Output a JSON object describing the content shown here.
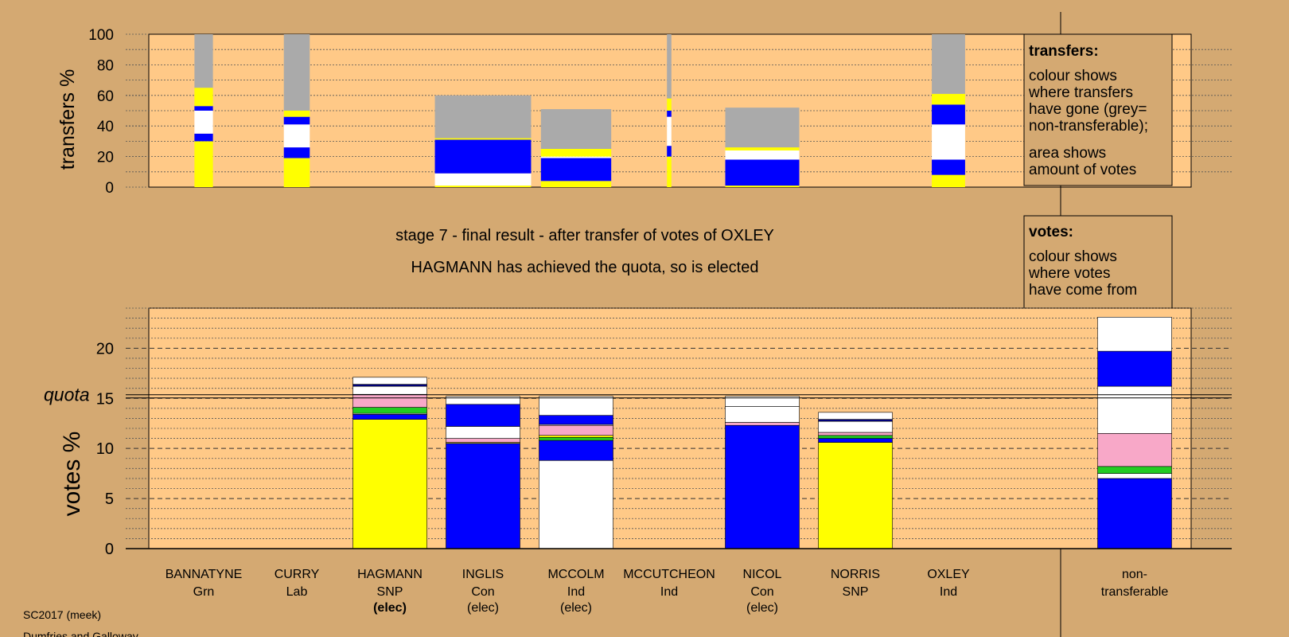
{
  "chart_data": [
    {
      "type": "bar",
      "panel": "transfers",
      "ylabel": "transfers %",
      "ylim": [
        0,
        100
      ],
      "yticks": [
        0,
        20,
        40,
        60,
        80,
        100
      ],
      "categories": [
        "BANNATYNE",
        "CURRY",
        "HAGMANN",
        "INGLIS",
        "MCCOLM",
        "MCCUTCHEON",
        "NICOL",
        "NORRIS",
        "OXLEY"
      ],
      "bars": [
        {
          "category": "BANNATYNE",
          "area_width": 0.25,
          "segments": [
            {
              "color": "#ffff00",
              "from": 0,
              "to": 30
            },
            {
              "color": "#0000ff",
              "from": 30,
              "to": 35
            },
            {
              "color": "#ffffff",
              "from": 35,
              "to": 50
            },
            {
              "color": "#0000ff",
              "from": 50,
              "to": 53
            },
            {
              "color": "#ffff00",
              "from": 53,
              "to": 65
            },
            {
              "color": "#aaaaaa",
              "from": 65,
              "to": 100
            }
          ]
        },
        {
          "category": "CURRY",
          "area_width": 0.35,
          "segments": [
            {
              "color": "#ffff00",
              "from": 0,
              "to": 19
            },
            {
              "color": "#0000ff",
              "from": 19,
              "to": 26
            },
            {
              "color": "#ffffff",
              "from": 26,
              "to": 41
            },
            {
              "color": "#0000ff",
              "from": 41,
              "to": 46
            },
            {
              "color": "#ffff00",
              "from": 46,
              "to": 50
            },
            {
              "color": "#aaaaaa",
              "from": 50,
              "to": 100
            }
          ]
        },
        {
          "category": "INGLIS",
          "area_width": 1.3,
          "segments": [
            {
              "color": "#ffff00",
              "from": 0,
              "to": 1
            },
            {
              "color": "#ffffff",
              "from": 1,
              "to": 9
            },
            {
              "color": "#0000ff",
              "from": 9,
              "to": 31
            },
            {
              "color": "#ffff00",
              "from": 31,
              "to": 32
            },
            {
              "color": "#aaaaaa",
              "from": 32,
              "to": 60
            }
          ]
        },
        {
          "category": "MCCOLM",
          "area_width": 0.95,
          "segments": [
            {
              "color": "#ffff00",
              "from": 0,
              "to": 4
            },
            {
              "color": "#0000ff",
              "from": 4,
              "to": 19
            },
            {
              "color": "#ffffff",
              "from": 19,
              "to": 20
            },
            {
              "color": "#ffff00",
              "from": 20,
              "to": 25
            },
            {
              "color": "#aaaaaa",
              "from": 25,
              "to": 51
            }
          ]
        },
        {
          "category": "MCCUTCHEON",
          "area_width": 0.06,
          "segments": [
            {
              "color": "#ffff00",
              "from": 0,
              "to": 20
            },
            {
              "color": "#0000ff",
              "from": 20,
              "to": 27
            },
            {
              "color": "#ffffff",
              "from": 27,
              "to": 46
            },
            {
              "color": "#0000ff",
              "from": 46,
              "to": 50
            },
            {
              "color": "#ffff00",
              "from": 50,
              "to": 58
            },
            {
              "color": "#aaaaaa",
              "from": 58,
              "to": 100
            }
          ]
        },
        {
          "category": "NICOL",
          "area_width": 1.0,
          "segments": [
            {
              "color": "#ffff00",
              "from": 0,
              "to": 1
            },
            {
              "color": "#0000ff",
              "from": 1,
              "to": 18
            },
            {
              "color": "#ffffff",
              "from": 18,
              "to": 24
            },
            {
              "color": "#ffff00",
              "from": 24,
              "to": 26
            },
            {
              "color": "#aaaaaa",
              "from": 26,
              "to": 52
            }
          ]
        },
        {
          "category": "OXLEY",
          "area_width": 0.45,
          "segments": [
            {
              "color": "#ffff00",
              "from": 0,
              "to": 8
            },
            {
              "color": "#0000ff",
              "from": 8,
              "to": 18
            },
            {
              "color": "#ffffff",
              "from": 18,
              "to": 41
            },
            {
              "color": "#0000ff",
              "from": 41,
              "to": 54
            },
            {
              "color": "#ffff00",
              "from": 54,
              "to": 61
            },
            {
              "color": "#aaaaaa",
              "from": 61,
              "to": 100
            }
          ]
        }
      ],
      "legend": {
        "title": "transfers:",
        "lines_1": [
          "colour shows",
          "where transfers",
          "have gone (grey=",
          "non-transferable);"
        ],
        "lines_2": [
          "area shows",
          "amount of votes"
        ]
      }
    },
    {
      "type": "bar",
      "panel": "votes",
      "ylabel": "votes %",
      "ylim": [
        0,
        24
      ],
      "yticks": [
        0,
        5,
        10,
        15,
        20
      ],
      "quota": 15.2,
      "quota_label": "quota",
      "categories": [
        "BANNATYNE",
        "CURRY",
        "HAGMANN",
        "INGLIS",
        "MCCOLM",
        "MCCUTCHEON",
        "NICOL",
        "NORRIS",
        "OXLEY",
        "non-transferable"
      ],
      "bars": [
        {
          "category": "HAGMANN",
          "segments": [
            {
              "color": "#ffff00",
              "from": 0,
              "to": 12.9
            },
            {
              "color": "#0000ff",
              "from": 12.9,
              "to": 13.4
            },
            {
              "color": "#ffffff",
              "from": 13.4,
              "to": 13.5
            },
            {
              "color": "#22cc22",
              "from": 13.5,
              "to": 14.1
            },
            {
              "color": "#f8a8c8",
              "from": 14.1,
              "to": 15.4
            },
            {
              "color": "#ffffff",
              "from": 15.4,
              "to": 16.2
            },
            {
              "color": "#000080",
              "from": 16.2,
              "to": 16.4
            },
            {
              "color": "#ffffff",
              "from": 16.4,
              "to": 17.1
            }
          ]
        },
        {
          "category": "INGLIS",
          "segments": [
            {
              "color": "#0000ff",
              "from": 0,
              "to": 10.5
            },
            {
              "color": "#ffff00",
              "from": 10.5,
              "to": 10.6
            },
            {
              "color": "#f8a8c8",
              "from": 10.6,
              "to": 11.0
            },
            {
              "color": "#ffffff",
              "from": 11.0,
              "to": 12.2
            },
            {
              "color": "#0000ff",
              "from": 12.2,
              "to": 14.4
            },
            {
              "color": "#ffffff",
              "from": 14.4,
              "to": 15.2
            }
          ]
        },
        {
          "category": "MCCOLM",
          "segments": [
            {
              "color": "#ffffff",
              "from": 0,
              "to": 8.8
            },
            {
              "color": "#0000ff",
              "from": 8.8,
              "to": 10.8
            },
            {
              "color": "#22cc22",
              "from": 10.8,
              "to": 11.1
            },
            {
              "color": "#ffff00",
              "from": 11.1,
              "to": 11.3
            },
            {
              "color": "#f8a8c8",
              "from": 11.3,
              "to": 12.3
            },
            {
              "color": "#ffffff",
              "from": 12.3,
              "to": 12.4
            },
            {
              "color": "#0000ff",
              "from": 12.4,
              "to": 13.3
            },
            {
              "color": "#ffffff",
              "from": 13.3,
              "to": 15.2
            }
          ]
        },
        {
          "category": "NICOL",
          "segments": [
            {
              "color": "#0000ff",
              "from": 0,
              "to": 12.3
            },
            {
              "color": "#f8a8c8",
              "from": 12.3,
              "to": 12.6
            },
            {
              "color": "#ffffff",
              "from": 12.6,
              "to": 14.2
            },
            {
              "color": "#ffffff",
              "from": 14.2,
              "to": 15.2
            }
          ]
        },
        {
          "category": "NORRIS",
          "segments": [
            {
              "color": "#ffff00",
              "from": 0,
              "to": 10.6
            },
            {
              "color": "#0000ff",
              "from": 10.6,
              "to": 11.0
            },
            {
              "color": "#22cc22",
              "from": 11.0,
              "to": 11.3
            },
            {
              "color": "#f8a8c8",
              "from": 11.3,
              "to": 11.6
            },
            {
              "color": "#ffffff",
              "from": 11.6,
              "to": 12.7
            },
            {
              "color": "#000080",
              "from": 12.7,
              "to": 12.9
            },
            {
              "color": "#ffffff",
              "from": 12.9,
              "to": 13.6
            }
          ]
        },
        {
          "category": "non-transferable",
          "segments": [
            {
              "color": "#0000ff",
              "from": 0,
              "to": 7.0
            },
            {
              "color": "#ffffff",
              "from": 7.0,
              "to": 7.5
            },
            {
              "color": "#22cc22",
              "from": 7.5,
              "to": 8.2
            },
            {
              "color": "#f8a8c8",
              "from": 8.2,
              "to": 11.5
            },
            {
              "color": "#ffffff",
              "from": 11.5,
              "to": 16.2
            },
            {
              "color": "#0000ff",
              "from": 16.2,
              "to": 19.7
            },
            {
              "color": "#ffffff",
              "from": 19.7,
              "to": 23.1
            }
          ]
        }
      ],
      "legend": {
        "title": "votes:",
        "lines": [
          "colour shows",
          "where votes",
          "have come from"
        ]
      }
    }
  ],
  "stage_title": "stage 7 - final result - after transfer of votes of OXLEY",
  "stage_subtitle": "HAGMANN has achieved the quota, so is elected",
  "candidates": [
    {
      "name": "BANNATYNE",
      "party": "Grn",
      "status": ""
    },
    {
      "name": "CURRY",
      "party": "Lab",
      "status": ""
    },
    {
      "name": "HAGMANN",
      "party": "SNP",
      "status": "(elec)",
      "status_bold": true
    },
    {
      "name": "INGLIS",
      "party": "Con",
      "status": "(elec)"
    },
    {
      "name": "MCCOLM",
      "party": "Ind",
      "status": "(elec)"
    },
    {
      "name": "MCCUTCHEON",
      "party": "Ind",
      "status": ""
    },
    {
      "name": "NICOL",
      "party": "Con",
      "status": "(elec)"
    },
    {
      "name": "NORRIS",
      "party": "SNP",
      "status": ""
    },
    {
      "name": "OXLEY",
      "party": "Ind",
      "status": ""
    },
    {
      "name": "non-",
      "party": "transferable",
      "status": ""
    }
  ],
  "footer": {
    "line1": "SC2017 (meek)",
    "line2": "Dumfries and Galloway"
  },
  "colors": {
    "background": "#d4a972",
    "plot_background": "#ffc987",
    "legend_background": "#d4a972"
  }
}
